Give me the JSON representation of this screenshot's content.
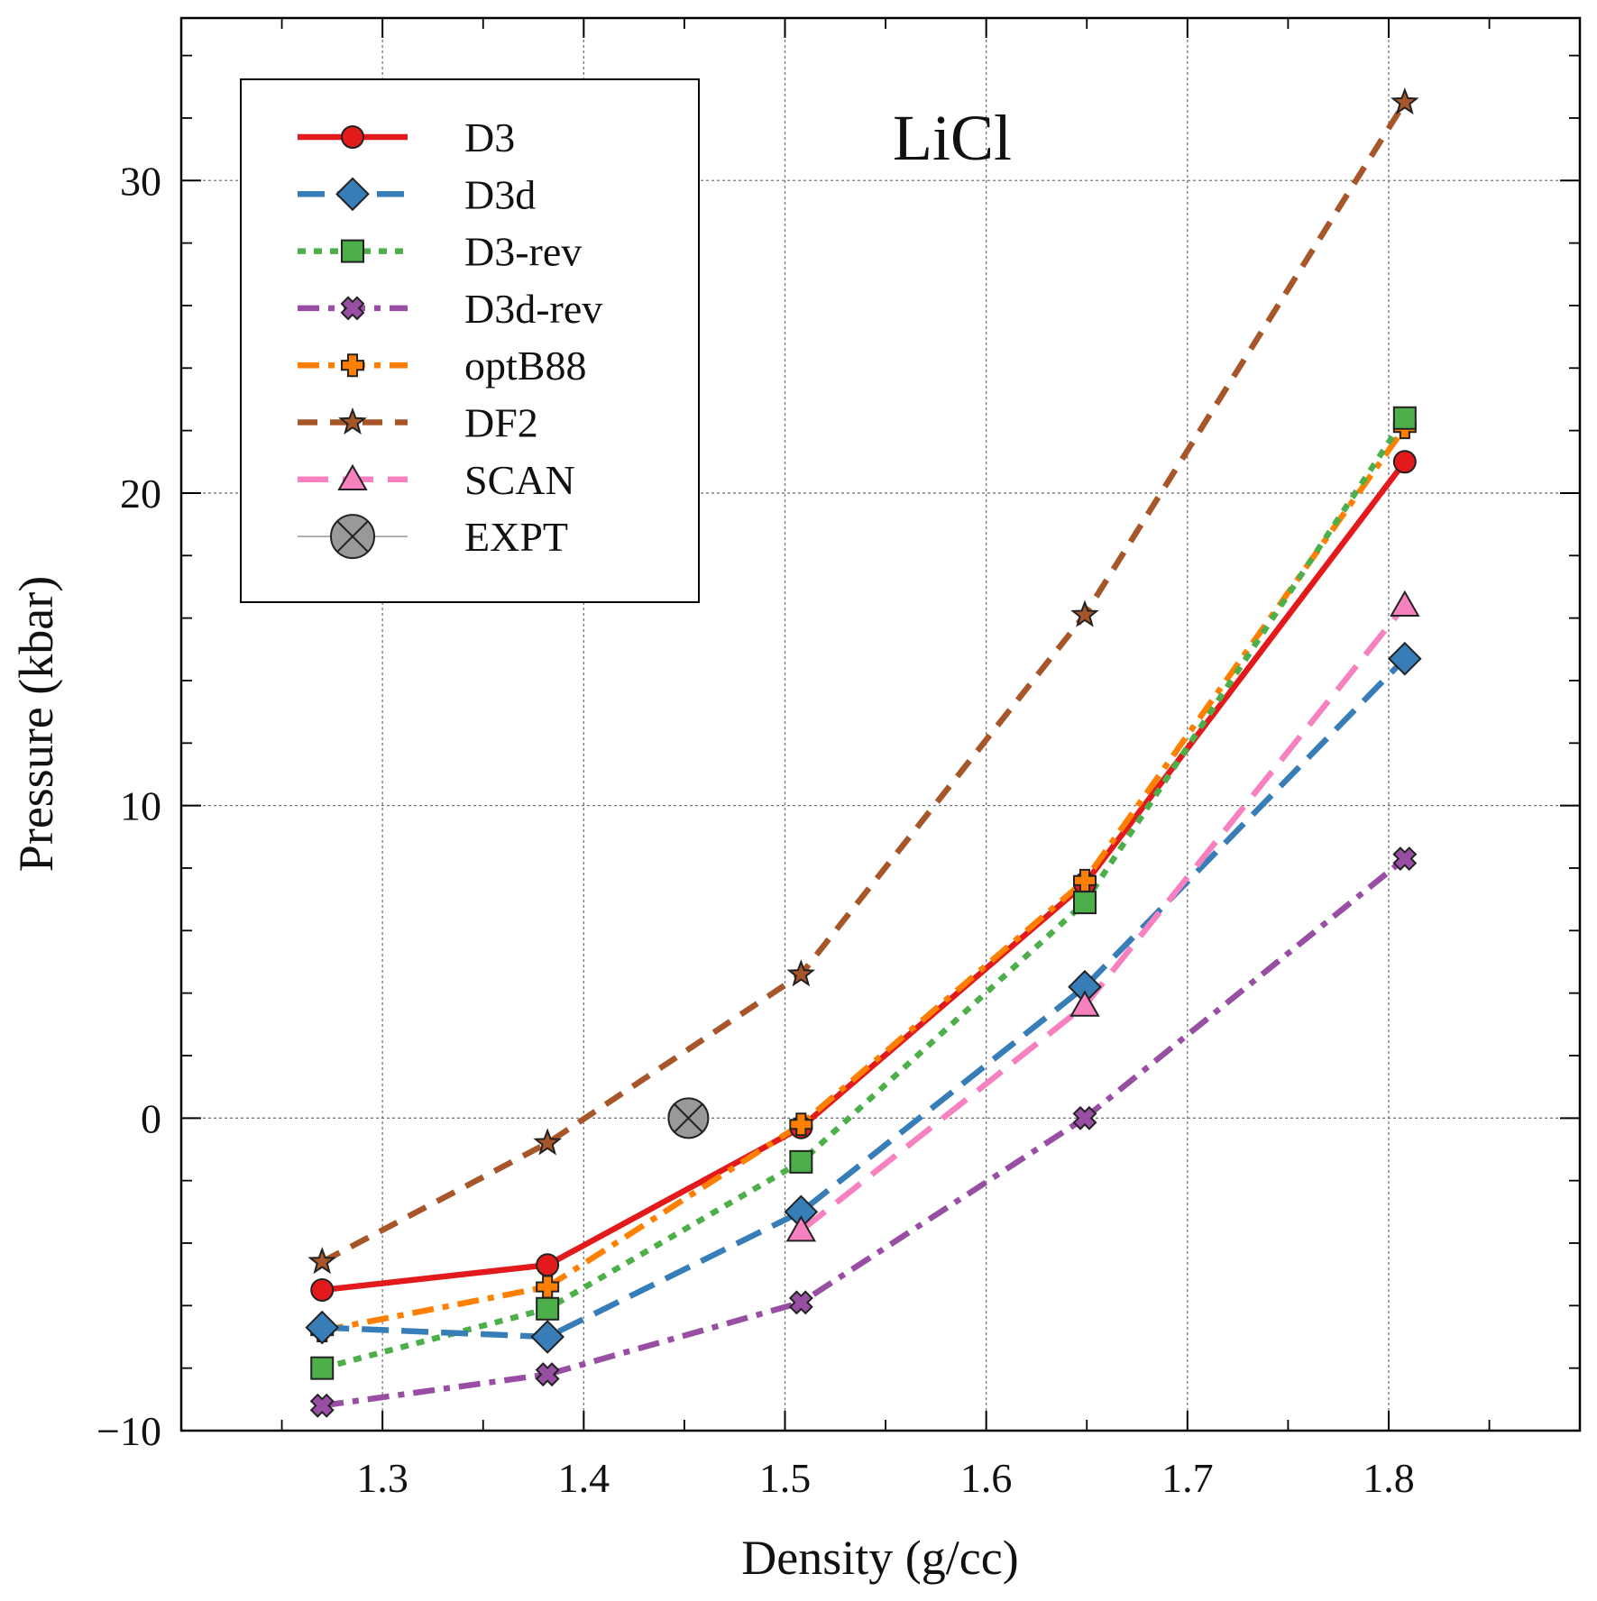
{
  "chart_data": {
    "type": "line",
    "annotation": "LiCl",
    "xlabel": "Density (g/cc)",
    "ylabel": "Pressure (kbar)",
    "xlim": [
      1.2,
      1.895
    ],
    "ylim": [
      -10,
      35.2
    ],
    "xticks": [
      1.3,
      1.4,
      1.5,
      1.6,
      1.7,
      1.8
    ],
    "xtick_labels": [
      "1.3",
      "1.4",
      "1.5",
      "1.6",
      "1.7",
      "1.8"
    ],
    "yticks": [
      -10,
      0,
      10,
      20,
      30
    ],
    "ytick_labels": [
      "−10",
      "0",
      "10",
      "20",
      "30"
    ],
    "grid": true,
    "legend_position": "upper-left",
    "x": [
      1.27,
      1.382,
      1.508,
      1.649,
      1.808
    ],
    "series": [
      {
        "name": "D3",
        "values": [
          -5.5,
          -4.7,
          -0.3,
          7.5,
          21.0
        ],
        "color": "#e31a1c",
        "dash": "solid",
        "marker": "circle",
        "marker_fill": "#e31a1c"
      },
      {
        "name": "D3d",
        "values": [
          -6.7,
          -7.0,
          -3.0,
          4.2,
          14.7
        ],
        "color": "#377eb8",
        "dash": "longdash",
        "marker": "diamond",
        "marker_fill": "#377eb8"
      },
      {
        "name": "D3-rev",
        "values": [
          -8.0,
          -6.1,
          -1.4,
          6.9,
          22.4
        ],
        "color": "#4daf4a",
        "dash": "dotted",
        "marker": "square",
        "marker_fill": "#4daf4a"
      },
      {
        "name": "D3d-rev",
        "values": [
          -9.2,
          -8.2,
          -5.9,
          0.0,
          8.3
        ],
        "color": "#984ea3",
        "dash": "dashdot",
        "marker": "x",
        "marker_fill": "#984ea3"
      },
      {
        "name": "optB88",
        "values": [
          -6.8,
          -5.4,
          -0.2,
          7.6,
          22.1
        ],
        "color": "#ff7f00",
        "dash": "dashdot",
        "marker": "plus",
        "marker_fill": "#ff7f00"
      },
      {
        "name": "DF2",
        "values": [
          -4.6,
          -0.8,
          4.6,
          16.1,
          32.5
        ],
        "color": "#a65628",
        "dash": "dashed",
        "marker": "star",
        "marker_fill": "#a65628"
      },
      {
        "name": "SCAN",
        "values": [
          null,
          null,
          -3.6,
          3.6,
          16.4
        ],
        "color": "#f781bf",
        "dash": "longdash2",
        "marker": "triangle",
        "marker_fill": "#f781bf"
      }
    ],
    "expt": {
      "name": "EXPT",
      "x": 1.452,
      "y": 0.0,
      "color": "#999999"
    }
  }
}
